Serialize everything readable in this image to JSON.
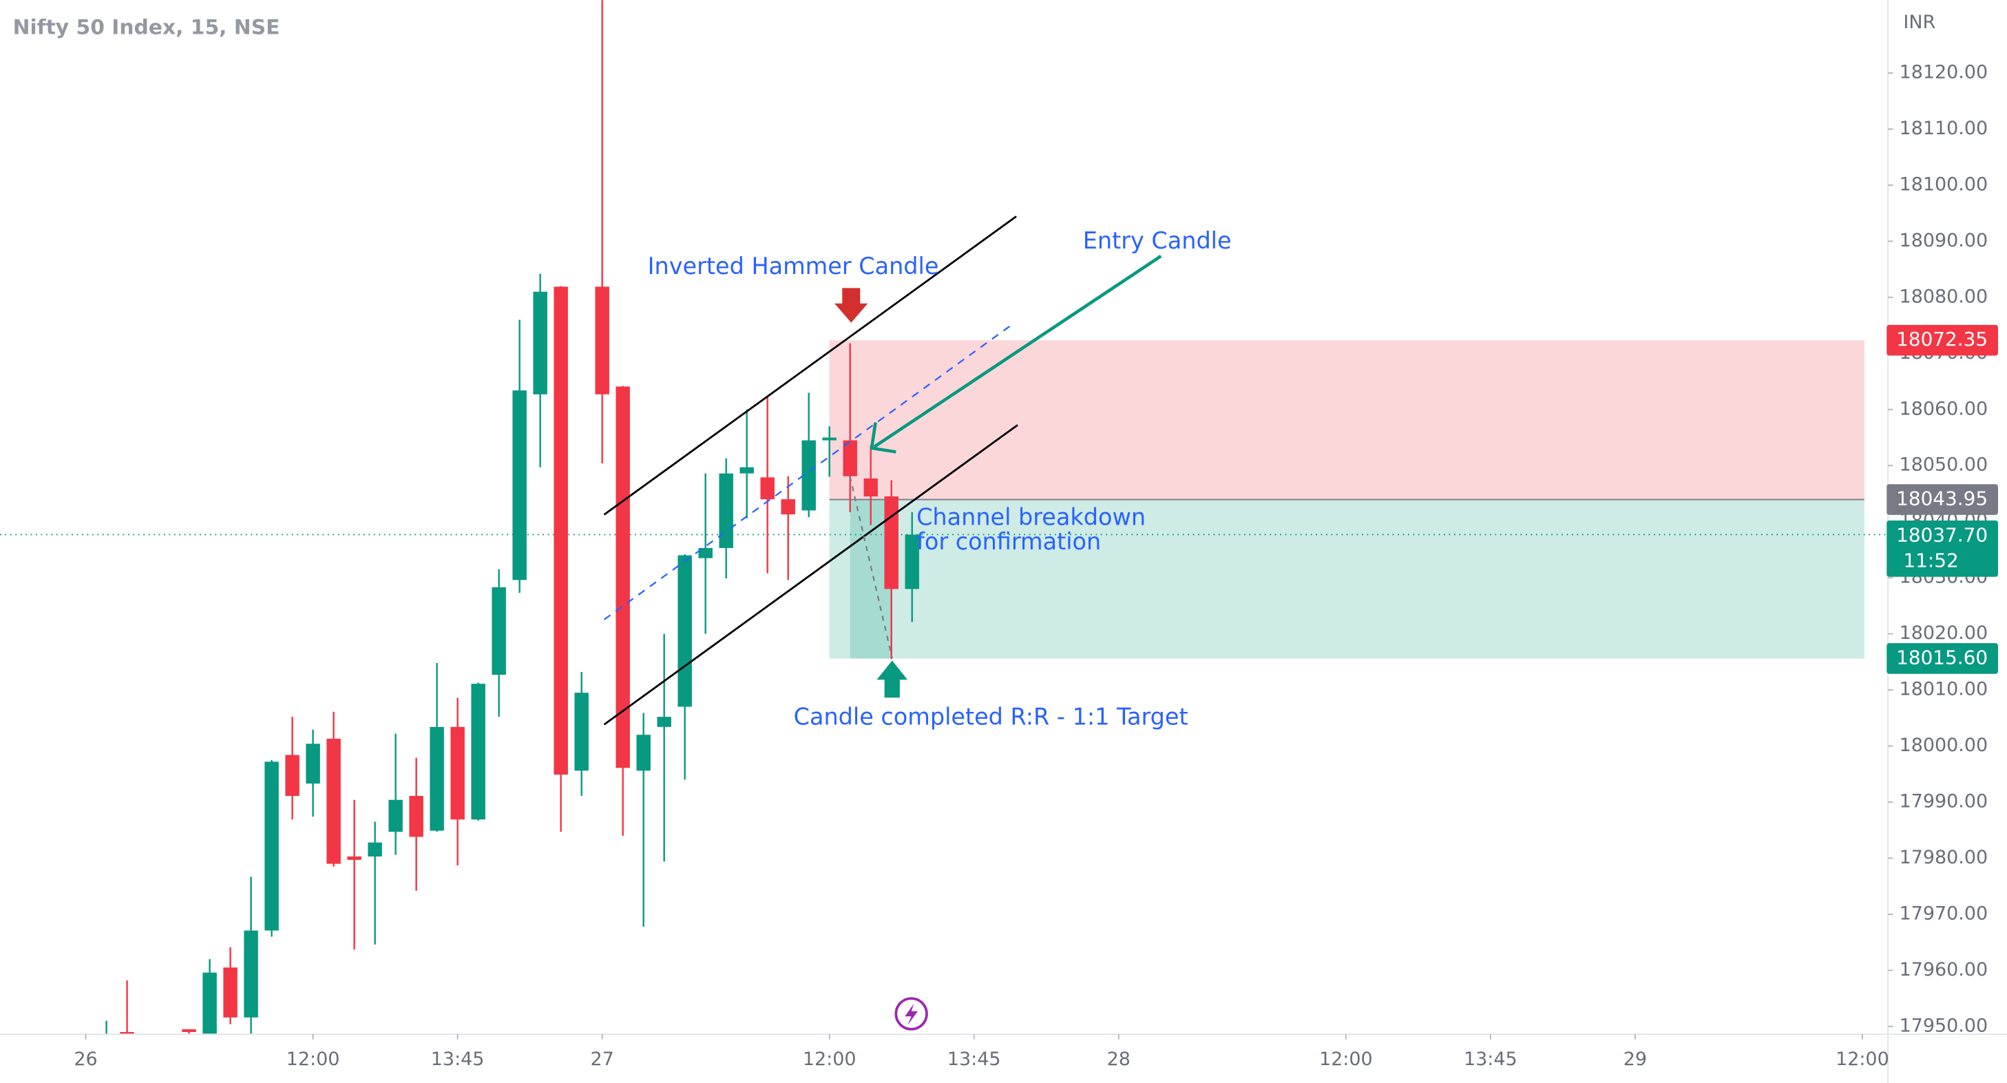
{
  "chart_data": {
    "type": "candlestick",
    "title": "Nifty 50 Index, 15, NSE",
    "currency": "INR",
    "up_color": "#089981",
    "down_color": "#f23645",
    "x": [
      1,
      2,
      5,
      6,
      7,
      8,
      9,
      10,
      11,
      12,
      13,
      14,
      15,
      16,
      17,
      18,
      19,
      20,
      21,
      22,
      23,
      24,
      25,
      26,
      27,
      28,
      29,
      30,
      31,
      32,
      33,
      34,
      35,
      36,
      37,
      38,
      39,
      40
    ],
    "open": [
      17945,
      17949,
      17949.5,
      17948,
      17960.5,
      17951.6,
      17967.1,
      17998.4,
      17993.3,
      18001.3,
      17980.3,
      17980.3,
      17984.7,
      17991.1,
      17984.9,
      18003.4,
      17986.9,
      18012.7,
      18029.6,
      18062.7,
      18081.9,
      17995.6,
      18081.9,
      18064.1,
      17995.6,
      18003.4,
      18007,
      18033.5,
      18035.3,
      18048.6,
      18047.9,
      18044,
      18042,
      18054.5,
      18054.5,
      18047.7,
      18044.5,
      18028
    ],
    "high": [
      17951,
      17958.2,
      17949.5,
      17962,
      17964.1,
      17976.7,
      17997.5,
      18005.2,
      18002.9,
      18006.1,
      17990.4,
      17986.5,
      18002.2,
      17997.9,
      18014.8,
      18008.6,
      18011.3,
      18031.5,
      18076,
      18084.2,
      18082,
      18013.2,
      18140,
      18064.2,
      18005.9,
      18020,
      18034.2,
      18048.6,
      18051.3,
      18060,
      18062.3,
      18048.1,
      18063,
      18057,
      18071.8,
      18053.6,
      18047.4,
      18041.7
    ],
    "low": [
      17940,
      17940,
      17945,
      17945,
      17950.4,
      17948,
      17966,
      17986.9,
      17987.4,
      17978.5,
      17963.7,
      17964.6,
      17980.6,
      17974.2,
      17984.7,
      17978.7,
      17986.7,
      18005.2,
      18027.3,
      18049.7,
      17984.7,
      17991.1,
      18050.4,
      17984,
      17967.8,
      17979.4,
      17994,
      18020,
      18029.9,
      18040.6,
      18030.8,
      18029.6,
      18040.8,
      18048,
      18041.7,
      18039.4,
      18015.5,
      18022.1
    ],
    "close": [
      17948,
      17945,
      17949,
      17959.6,
      17951.6,
      17967.1,
      17997.2,
      17991.1,
      18000.4,
      17979,
      17979.7,
      17982.8,
      17990.4,
      17983.8,
      18003.4,
      17986.9,
      18011.1,
      18028.3,
      18063.4,
      18081,
      17994.9,
      18009.5,
      18062.7,
      17996.1,
      18002,
      18005.2,
      18034,
      18035.3,
      18048.6,
      18049.7,
      18044,
      18041.3,
      18054.5,
      18055,
      18048.1,
      18044.5,
      18028,
      18037.7
    ],
    "xlim": [
      -4.151,
      87.24
    ],
    "xticks": [
      {
        "value": 0,
        "label": "26"
      },
      {
        "value": 11,
        "label": "12:00"
      },
      {
        "value": 18,
        "label": "13:45"
      },
      {
        "value": 25,
        "label": "27"
      },
      {
        "value": 36,
        "label": "12:00"
      },
      {
        "value": 43,
        "label": "13:45"
      },
      {
        "value": 50,
        "label": "28"
      },
      {
        "value": 61,
        "label": "12:00"
      },
      {
        "value": 68,
        "label": "13:45"
      },
      {
        "value": 75,
        "label": "29"
      },
      {
        "value": 86,
        "label": "12:00"
      }
    ],
    "ylim": [
      17948.6,
      18133.0
    ],
    "yticks": [
      {
        "value": 18120,
        "label": "18120.00"
      },
      {
        "value": 18110,
        "label": "18110.00"
      },
      {
        "value": 18100,
        "label": "18100.00"
      },
      {
        "value": 18090,
        "label": "18090.00"
      },
      {
        "value": 18080,
        "label": "18080.00"
      },
      {
        "value": 18070,
        "label": "18070.00"
      },
      {
        "value": 18060,
        "label": "18060.00"
      },
      {
        "value": 18050,
        "label": "18050.00"
      },
      {
        "value": 18040,
        "label": "18040.00"
      },
      {
        "value": 18030,
        "label": "18030.00"
      },
      {
        "value": 18020,
        "label": "18020.00"
      },
      {
        "value": 18010,
        "label": "18010.00"
      },
      {
        "value": 18000,
        "label": "18000.00"
      },
      {
        "value": 17990,
        "label": "17990.00"
      },
      {
        "value": 17980,
        "label": "17980.00"
      },
      {
        "value": 17970,
        "label": "17970.00"
      },
      {
        "value": 17960,
        "label": "17960.00"
      },
      {
        "value": 17950,
        "label": "17950.00"
      }
    ],
    "position": {
      "x_start": 36,
      "x_end": 86.1,
      "stop": {
        "value": 18072.35,
        "label": "18072.35"
      },
      "entry": {
        "value": 18043.95,
        "label": "18043.95"
      },
      "target": {
        "value": 18015.6,
        "label": "18015.60"
      }
    },
    "last_price": {
      "value": 18037.7,
      "label": "18037.70"
    },
    "countdown": "11:52",
    "annotations": [
      "Inverted Hammer Candle",
      "Entry Candle",
      "Channel breakdown",
      "for confirmation",
      "Candle completed R:R - 1:1 Target"
    ]
  }
}
